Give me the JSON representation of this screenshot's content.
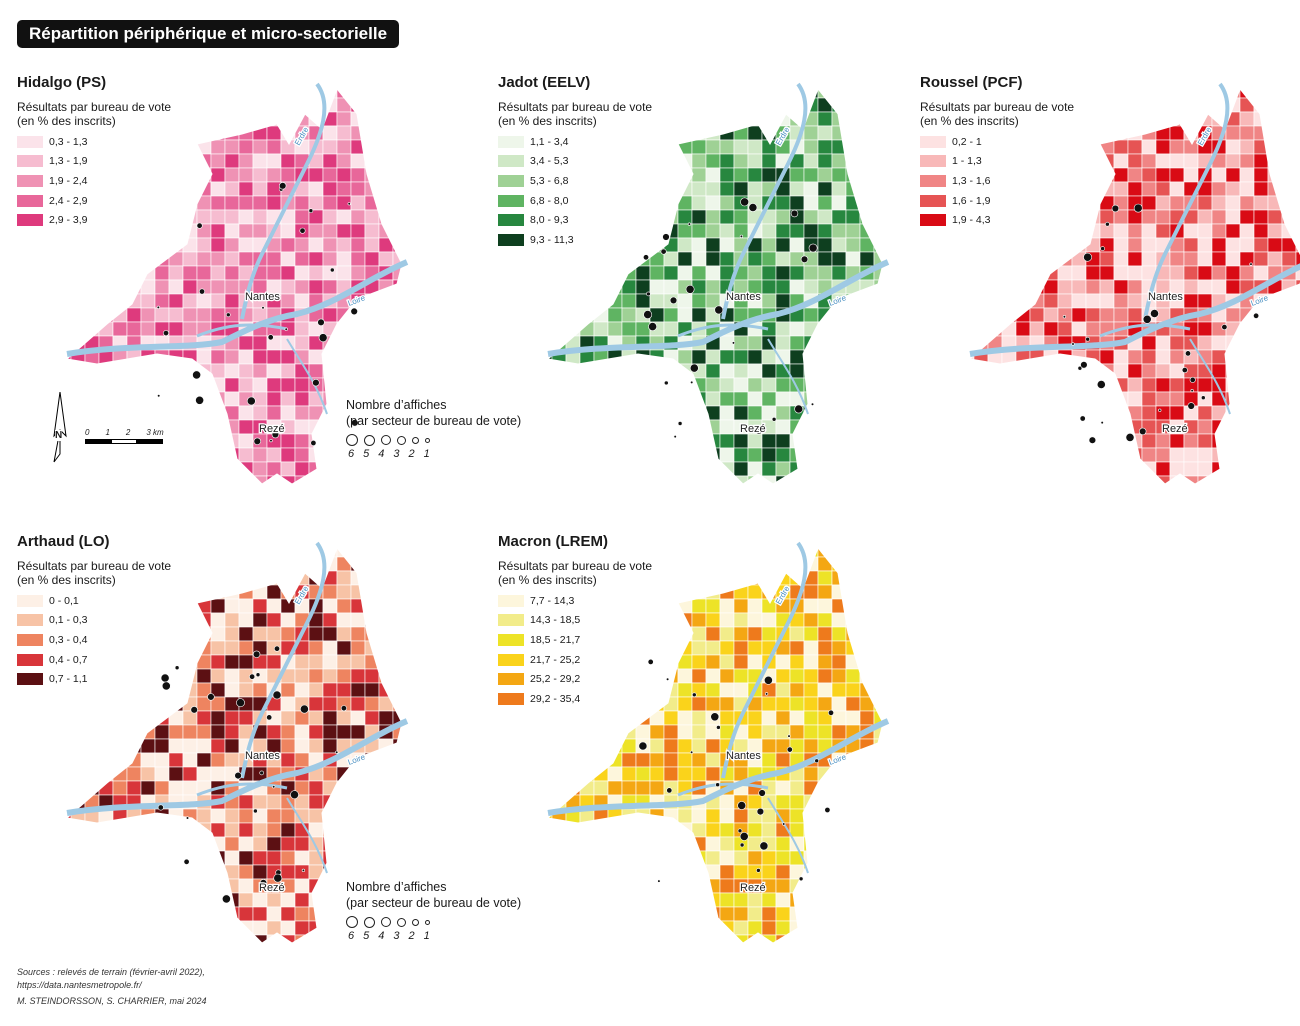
{
  "main_title": "Répartition périphérique et micro-sectorielle",
  "legend_title": [
    "Résultats par bureau de vote",
    "(en % des inscrits)"
  ],
  "city_labels": {
    "nantes": "Nantes",
    "reze": "Rezé",
    "erdre": "Erdre",
    "loire": "Loire"
  },
  "panels": [
    {
      "title": "Hidalgo (PS)",
      "classes": [
        "0,3 - 1,3",
        "1,3 - 1,9",
        "1,9 - 2,4",
        "2,4 - 2,9",
        "2,9 - 3,9"
      ],
      "colors": [
        "#fbe3ea",
        "#f6bcd0",
        "#ef92b4",
        "#e8679a",
        "#de3a7d"
      ]
    },
    {
      "title": "Jadot (EELV)",
      "classes": [
        "1,1 - 3,4",
        "3,4 - 5,3",
        "5,3 - 6,8",
        "6,8 - 8,0",
        "8,0 - 9,3",
        "9,3 - 11,3"
      ],
      "colors": [
        "#eef6ea",
        "#cfe8c6",
        "#9fd195",
        "#5fb462",
        "#27873f",
        "#0e3f1f"
      ]
    },
    {
      "title": "Roussel (PCF)",
      "classes": [
        "0,2 - 1",
        "1 - 1,3",
        "1,3 - 1,6",
        "1,6 - 1,9",
        "1,9 - 4,3"
      ],
      "colors": [
        "#fde2e2",
        "#f8b8b8",
        "#f08585",
        "#e65454",
        "#d90b15"
      ]
    },
    {
      "title": "Arthaud (LO)",
      "classes": [
        "0 - 0,1",
        "0,1 - 0,3",
        "0,3 - 0,4",
        "0,4 - 0,7",
        "0,7 - 1,1"
      ],
      "colors": [
        "#fdf0e6",
        "#f7c3a6",
        "#ee8460",
        "#d8353a",
        "#5c1013"
      ]
    },
    {
      "title": "Macron (LREM)",
      "classes": [
        "7,7 - 14,3",
        "14,3 - 18,5",
        "18,5 - 21,7",
        "21,7 - 25,2",
        "25,2 - 29,2",
        "29,2 - 35,4"
      ],
      "colors": [
        "#fdf6dc",
        "#f2ec8a",
        "#ede327",
        "#fad31b",
        "#f4a713",
        "#ee7a1c"
      ]
    }
  ],
  "circle_legend": {
    "title": "Nombre d’affiches",
    "subtitle": "(par secteur de bureau de vote)",
    "values": [
      "6",
      "5",
      "4",
      "3",
      "2",
      "1"
    ]
  },
  "north": "N",
  "scale_labels": [
    "0",
    "1",
    "2",
    "3 km"
  ],
  "footer": {
    "sources": "Sources : relevés de terrain (février-avril 2022),",
    "url": "https://data.nantesmetropole.fr/",
    "authors": "M. STEINDORSSON, S. CHARRIER, mai 2024"
  }
}
